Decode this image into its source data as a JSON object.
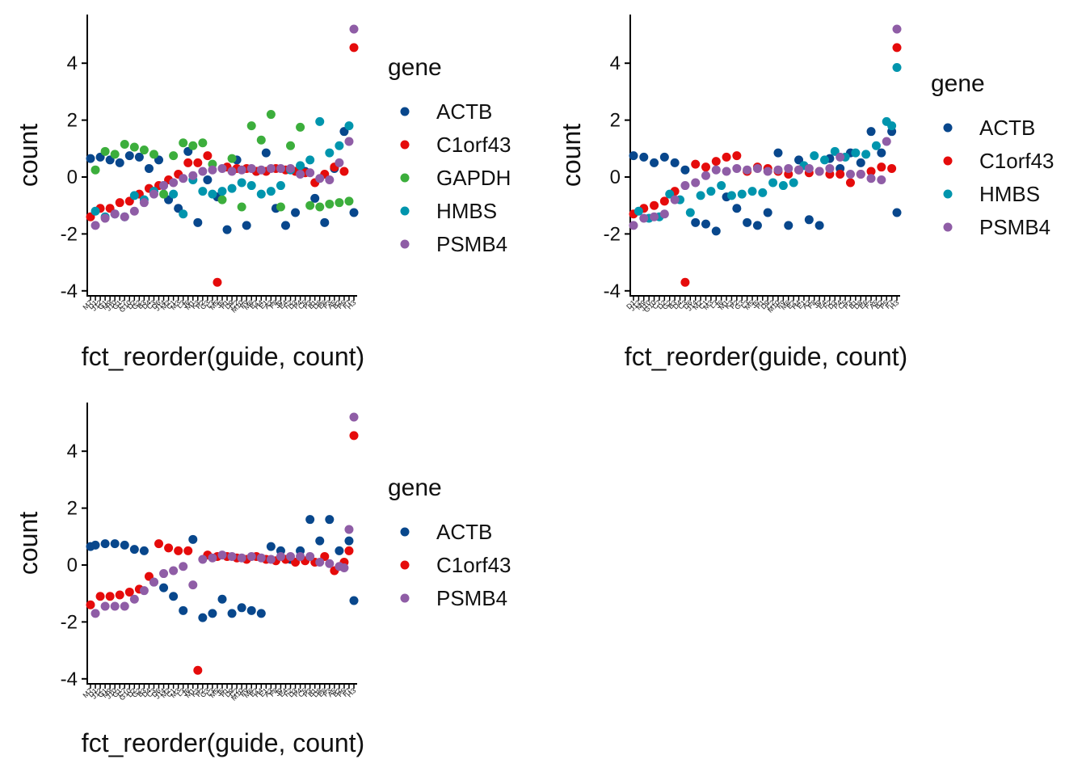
{
  "colors": {
    "ACTB": "#08478c",
    "C1orf43": "#e50b0b",
    "GAPDH": "#3cae3c",
    "HMBS": "#0095ad",
    "PSMB4": "#8f5da6"
  },
  "chart_data": [
    {
      "type": "scatter",
      "xlabel": "fct_reorder(guide, count)",
      "ylabel": "count",
      "ylim": [
        -4.2,
        5.8
      ],
      "yticks": [
        -4,
        -2,
        0,
        2,
        4
      ],
      "legend": {
        "title": "gene",
        "placement": "right",
        "entries": [
          "ACTB",
          "C1orf43",
          "GAPDH",
          "HMBS",
          "PSMB4"
        ]
      },
      "x_tick_labels": [
        "M7",
        "D1",
        "J12",
        "G1",
        "M9",
        "J10",
        "G1",
        "C7",
        "G10",
        "D2",
        "G2",
        "B3",
        "D4",
        "C3",
        "D6",
        "J14",
        "M2",
        "C1",
        "M3",
        "L3",
        "J6",
        "M1",
        "K3",
        "P2",
        "G3",
        "L3",
        "M5",
        "J5",
        "P1",
        "D9",
        "C2",
        "M10",
        "F9",
        "M6",
        "E2",
        "H4",
        "E1",
        "A3",
        "F8",
        "J9",
        "E4",
        "F2",
        "D3",
        "P4",
        "C5",
        "P3",
        "B1",
        "D8",
        "E6",
        "F3",
        "A5",
        "B2",
        "P5",
        "F7",
        "H3"
      ],
      "series": [
        {
          "name": "ACTB",
          "x": [
            1,
            3,
            5,
            7,
            9,
            11,
            13,
            15,
            17,
            19,
            21,
            23,
            25,
            27,
            29,
            31,
            33,
            35,
            37,
            39,
            41,
            43,
            45,
            47,
            49,
            51,
            53,
            55
          ],
          "y": [
            0.65,
            0.7,
            0.6,
            0.5,
            0.75,
            0.7,
            0.3,
            0.6,
            -0.8,
            -1.1,
            0.9,
            -1.6,
            -0.1,
            -0.7,
            -1.85,
            0.6,
            -1.7,
            0.2,
            0.85,
            -1.1,
            -1.7,
            -1.25,
            0.2,
            -0.75,
            -1.6,
            0.3,
            1.6,
            -1.25
          ]
        },
        {
          "name": "C1orf43",
          "x": [
            1,
            3,
            5,
            7,
            9,
            11,
            13,
            15,
            17,
            19,
            21,
            23,
            25,
            27,
            29,
            31,
            33,
            35,
            37,
            39,
            41,
            43,
            45,
            47,
            49,
            51,
            53,
            55
          ],
          "y": [
            -1.4,
            -1.1,
            -1.1,
            -0.9,
            -0.85,
            -0.6,
            -0.4,
            -0.3,
            -0.1,
            0.1,
            0.5,
            0.5,
            0.75,
            -3.7,
            0.35,
            0.3,
            0.3,
            0.2,
            0.2,
            0.3,
            0.25,
            0.2,
            0.15,
            -0.2,
            0.1,
            0.35,
            0.2,
            4.55
          ]
        },
        {
          "name": "GAPDH",
          "x": [
            2,
            4,
            6,
            8,
            10,
            12,
            14,
            16,
            18,
            20,
            22,
            24,
            26,
            28,
            30,
            32,
            34,
            36,
            38,
            40,
            42,
            44,
            46,
            48,
            50,
            52,
            54
          ],
          "y": [
            0.25,
            0.9,
            0.8,
            1.15,
            1.05,
            0.95,
            0.8,
            -0.6,
            0.75,
            1.2,
            1.1,
            1.2,
            0.45,
            -0.8,
            0.65,
            -1.05,
            1.8,
            1.3,
            2.2,
            -1.05,
            1.1,
            1.75,
            -1.0,
            -1.05,
            -0.95,
            -0.9,
            -0.85
          ]
        },
        {
          "name": "HMBS",
          "x": [
            2,
            4,
            6,
            8,
            10,
            12,
            14,
            16,
            18,
            20,
            22,
            24,
            26,
            28,
            30,
            32,
            34,
            36,
            38,
            40,
            42,
            44,
            46,
            48,
            50,
            52,
            54
          ],
          "y": [
            -1.2,
            -1.4,
            -1.3,
            -1.4,
            -0.65,
            -0.8,
            -0.5,
            -0.3,
            -0.6,
            -1.3,
            -0.1,
            -0.5,
            -0.6,
            -0.5,
            -0.4,
            -0.2,
            -0.3,
            -0.6,
            -0.5,
            -0.3,
            0.25,
            0.4,
            0.6,
            1.95,
            0.85,
            1.1,
            1.8
          ]
        },
        {
          "name": "PSMB4",
          "x": [
            2,
            4,
            6,
            8,
            10,
            12,
            14,
            16,
            18,
            20,
            22,
            24,
            26,
            28,
            30,
            32,
            34,
            36,
            38,
            40,
            42,
            44,
            46,
            48,
            50,
            52,
            54,
            55
          ],
          "y": [
            -1.7,
            -1.45,
            -1.3,
            -1.4,
            -1.2,
            -0.9,
            -0.6,
            -0.3,
            -0.2,
            -0.05,
            0.05,
            0.2,
            0.25,
            0.3,
            0.2,
            0.25,
            0.3,
            0.25,
            0.3,
            0.3,
            0.3,
            0.1,
            0.15,
            -0.05,
            -0.1,
            0.5,
            1.25,
            5.2
          ]
        }
      ]
    },
    {
      "type": "scatter",
      "xlabel": "fct_reorder(guide, count)",
      "ylabel": "count",
      "ylim": [
        -4.2,
        5.8
      ],
      "yticks": [
        -4,
        -2,
        0,
        2,
        4
      ],
      "legend": {
        "title": "gene",
        "placement": "right",
        "entries": [
          "ACTB",
          "C1orf43",
          "HMBS",
          "PSMB4"
        ]
      },
      "x_tick_labels": [
        "D1",
        "J12",
        "M9",
        "J10",
        "G10",
        "C7",
        "D2",
        "G2",
        "B3",
        "D4",
        "C3",
        "D6",
        "J14",
        "M2",
        "C1",
        "M3",
        "L3",
        "J6",
        "M1",
        "K3",
        "P2",
        "G3",
        "L3",
        "M5",
        "J5",
        "P1",
        "D9",
        "C2",
        "M10",
        "F9",
        "M6",
        "E2",
        "H4",
        "E1",
        "A3",
        "F8",
        "J9",
        "E4",
        "F2",
        "D3",
        "P4",
        "C5",
        "P3",
        "B1",
        "D8",
        "E6",
        "F3",
        "A5",
        "B2",
        "P5",
        "F7",
        "H3"
      ],
      "series": [
        {
          "name": "ACTB",
          "x": [
            1,
            3,
            5,
            7,
            9,
            11,
            13,
            15,
            17,
            19,
            21,
            23,
            25,
            27,
            29,
            31,
            33,
            35,
            37,
            39,
            41,
            43,
            45,
            47,
            49,
            51,
            52
          ],
          "y": [
            0.75,
            0.7,
            0.5,
            0.7,
            0.5,
            0.25,
            -1.6,
            -1.65,
            -1.9,
            -0.7,
            -1.1,
            -1.6,
            -1.7,
            -1.25,
            0.85,
            -1.7,
            0.6,
            -1.5,
            -1.7,
            0.65,
            0.3,
            0.85,
            0.5,
            1.6,
            0.85,
            1.6,
            -1.25
          ]
        },
        {
          "name": "C1orf43",
          "x": [
            1,
            3,
            5,
            7,
            9,
            11,
            13,
            15,
            17,
            19,
            21,
            23,
            25,
            27,
            29,
            31,
            33,
            35,
            37,
            39,
            41,
            43,
            45,
            47,
            49,
            51,
            52
          ],
          "y": [
            -1.3,
            -1.1,
            -1.0,
            -0.85,
            -0.5,
            -3.7,
            0.45,
            0.35,
            0.55,
            0.7,
            0.75,
            0.2,
            0.35,
            0.3,
            0.2,
            0.1,
            0.25,
            0.15,
            0.2,
            0.1,
            0.1,
            -0.2,
            0.1,
            0.2,
            0.35,
            0.3,
            4.55
          ]
        },
        {
          "name": "HMBS",
          "x": [
            2,
            4,
            6,
            8,
            10,
            12,
            14,
            16,
            18,
            20,
            22,
            24,
            26,
            28,
            30,
            32,
            34,
            36,
            38,
            40,
            42,
            44,
            46,
            48,
            50,
            51,
            52
          ],
          "y": [
            -1.2,
            -1.45,
            -1.4,
            -0.6,
            -0.8,
            -1.25,
            -0.65,
            -0.5,
            -0.3,
            -0.65,
            -0.6,
            -0.5,
            -0.55,
            -0.2,
            -0.3,
            -0.2,
            0.4,
            0.75,
            0.6,
            0.9,
            0.7,
            0.85,
            0.8,
            1.1,
            1.95,
            1.8,
            3.85
          ]
        },
        {
          "name": "PSMB4",
          "x": [
            1,
            3,
            5,
            7,
            9,
            11,
            13,
            15,
            17,
            19,
            21,
            23,
            25,
            27,
            29,
            31,
            33,
            35,
            37,
            39,
            41,
            43,
            45,
            47,
            49,
            50,
            52
          ],
          "y": [
            -1.7,
            -1.45,
            -1.4,
            -1.3,
            -0.8,
            -0.3,
            -0.2,
            0.05,
            0.25,
            0.2,
            0.3,
            0.25,
            0.3,
            0.2,
            0.25,
            0.3,
            0.25,
            0.3,
            0.2,
            0.3,
            0.7,
            0.1,
            0.1,
            -0.05,
            -0.1,
            1.25,
            5.2
          ]
        }
      ]
    },
    {
      "type": "scatter",
      "xlabel": "fct_reorder(guide, count)",
      "ylabel": "count",
      "ylim": [
        -4.2,
        5.8
      ],
      "yticks": [
        -4,
        -2,
        0,
        2,
        4
      ],
      "legend": {
        "title": "gene",
        "placement": "right",
        "entries": [
          "ACTB",
          "C1orf43",
          "PSMB4"
        ]
      },
      "x_tick_labels": [
        "M7",
        "D1",
        "J12",
        "G1",
        "M9",
        "J10",
        "G1",
        "C7",
        "G10",
        "D2",
        "G2",
        "B3",
        "D4",
        "C3",
        "D6",
        "J14",
        "M2",
        "C1",
        "M3",
        "L3",
        "J6",
        "M1",
        "K3",
        "P2",
        "G3",
        "L3",
        "M5",
        "J5",
        "P1",
        "D9",
        "C2",
        "M10",
        "F9",
        "M6",
        "E2",
        "H4",
        "E1",
        "A3",
        "F8",
        "J9",
        "E4",
        "F2",
        "D3",
        "P4",
        "C5",
        "P3",
        "B1",
        "D8",
        "E6",
        "F3",
        "A5",
        "B2",
        "P5",
        "F7",
        "H3"
      ],
      "series": [
        {
          "name": "ACTB",
          "x": [
            1,
            2,
            4,
            6,
            8,
            10,
            12,
            14,
            16,
            18,
            20,
            22,
            24,
            26,
            28,
            30,
            32,
            34,
            36,
            38,
            40,
            42,
            44,
            46,
            48,
            50,
            52,
            54,
            55
          ],
          "y": [
            0.65,
            0.7,
            0.75,
            0.75,
            0.7,
            0.55,
            0.5,
            -0.6,
            -0.8,
            -1.1,
            -1.6,
            0.9,
            -1.85,
            -1.7,
            -1.2,
            -1.7,
            -1.5,
            -1.6,
            -1.7,
            0.65,
            0.5,
            0.2,
            0.5,
            1.6,
            0.85,
            1.6,
            0.5,
            0.85,
            -1.25
          ]
        },
        {
          "name": "C1orf43",
          "x": [
            1,
            3,
            5,
            7,
            9,
            11,
            13,
            15,
            17,
            19,
            21,
            23,
            25,
            27,
            29,
            31,
            33,
            35,
            37,
            39,
            41,
            43,
            45,
            47,
            49,
            51,
            53,
            54,
            55
          ],
          "y": [
            -1.4,
            -1.1,
            -1.1,
            -1.05,
            -0.95,
            -0.85,
            -0.4,
            0.75,
            0.6,
            0.5,
            0.5,
            -3.7,
            0.35,
            0.3,
            0.3,
            0.25,
            0.2,
            0.3,
            0.2,
            0.15,
            0.2,
            0.1,
            0.15,
            0.1,
            0.3,
            -0.2,
            0.1,
            0.5,
            4.55
          ]
        },
        {
          "name": "PSMB4",
          "x": [
            2,
            4,
            6,
            8,
            10,
            12,
            14,
            16,
            18,
            20,
            22,
            24,
            26,
            28,
            30,
            32,
            34,
            36,
            38,
            40,
            42,
            44,
            46,
            48,
            50,
            52,
            53,
            54,
            55
          ],
          "y": [
            -1.7,
            -1.45,
            -1.45,
            -1.45,
            -1.2,
            -0.9,
            -0.6,
            -0.3,
            -0.2,
            -0.05,
            -0.7,
            0.2,
            0.25,
            0.35,
            0.3,
            0.25,
            0.3,
            0.25,
            0.2,
            0.3,
            0.3,
            0.3,
            0.3,
            0.1,
            0.05,
            -0.05,
            -0.1,
            1.25,
            5.2
          ]
        }
      ]
    }
  ]
}
